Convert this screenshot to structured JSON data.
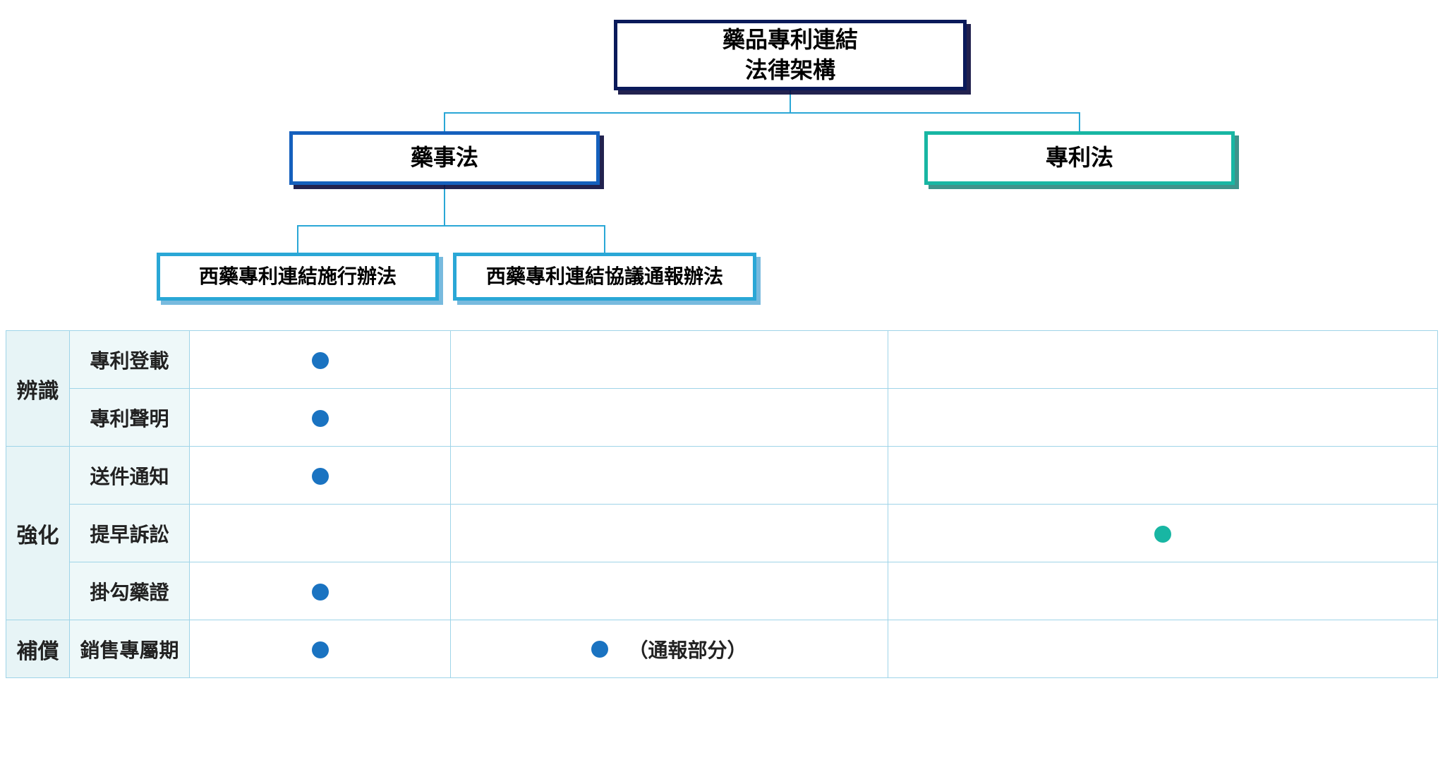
{
  "diagram": {
    "type": "tree",
    "background_color": "#ffffff",
    "connector_color": "#2aa7d6",
    "connector_width": 2,
    "nodes": {
      "root": {
        "label_line1": "藥品專利連結",
        "label_line2": "法律架構",
        "border_color": "#0a1a5a",
        "shadow_color": "#0b0b3c",
        "fontsize": 32
      },
      "pharma_law": {
        "label": "藥事法",
        "border_color": "#1560bd",
        "shadow_color": "#0b1f5e",
        "fontsize": 32
      },
      "patent_law": {
        "label": "專利法",
        "border_color": "#18b6a3",
        "shadow_color": "#0e786e",
        "fontsize": 32
      },
      "impl_rules": {
        "label": "西藥專利連結施行辦法",
        "border_color": "#2aa7d6",
        "shadow_color": "#1e8cc8",
        "fontsize": 28
      },
      "notif_rules": {
        "label": "西藥專利連結協議通報辦法",
        "border_color": "#2aa7d6",
        "shadow_color": "#1e8cc8",
        "fontsize": 28
      }
    },
    "edges": [
      {
        "from": "root",
        "to": "pharma_law"
      },
      {
        "from": "root",
        "to": "patent_law"
      },
      {
        "from": "pharma_law",
        "to": "impl_rules"
      },
      {
        "from": "pharma_law",
        "to": "notif_rules"
      }
    ]
  },
  "table": {
    "type": "table",
    "border_color": "#9fd4e8",
    "category_bg": "#e7f4f6",
    "subcat_bg": "#eef8f9",
    "dot_blue": "#1a73c1",
    "dot_teal": "#18b6a3",
    "text_color": "#222222",
    "columns": [
      "category",
      "subcategory",
      "impl_rules",
      "notif_rules",
      "patent_law"
    ],
    "categories": [
      {
        "name": "辨識",
        "rows": [
          {
            "sub": "專利登載",
            "impl": true,
            "notif": false,
            "patent": false
          },
          {
            "sub": "專利聲明",
            "impl": true,
            "notif": false,
            "patent": false
          }
        ]
      },
      {
        "name": "強化",
        "rows": [
          {
            "sub": "送件通知",
            "impl": true,
            "notif": false,
            "patent": false
          },
          {
            "sub": "提早訴訟",
            "impl": false,
            "notif": false,
            "patent": true
          },
          {
            "sub": "掛勾藥證",
            "impl": true,
            "notif": false,
            "patent": false
          }
        ]
      },
      {
        "name": "補償",
        "rows": [
          {
            "sub": "銷售專屬期",
            "impl": true,
            "notif": true,
            "notif_annotation": "（通報部分）",
            "patent": false
          }
        ]
      }
    ]
  }
}
